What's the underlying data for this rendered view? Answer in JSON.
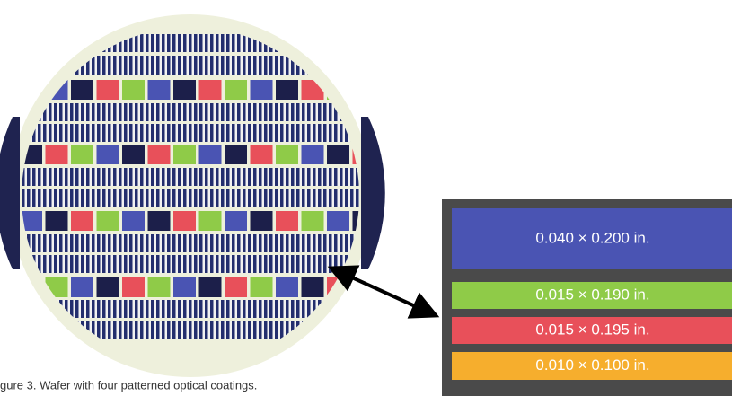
{
  "caption": "gure 3. Wafer with four patterned optical coatings.",
  "coatings": [
    {
      "label": "0.040 × 0.200 in.",
      "color": "#4a54b3"
    },
    {
      "label": "0.015 × 0.190 in.",
      "color": "#8fcb48"
    },
    {
      "label": "0.015 × 0.195 in.",
      "color": "#e8505a"
    },
    {
      "label": "0.010 × 0.100 in.",
      "color": "#f6ae2d"
    }
  ]
}
